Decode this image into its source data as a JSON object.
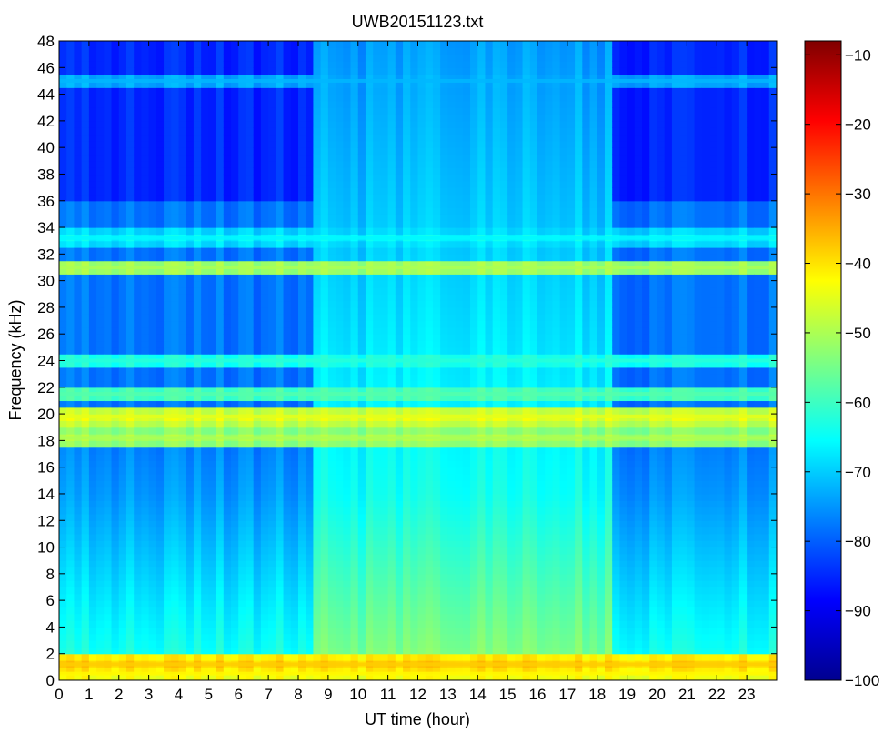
{
  "chart_data": {
    "type": "heatmap",
    "title": "UWB20151123.txt",
    "xlabel": "UT time (hour)",
    "ylabel": "Frequency (kHz)",
    "xlim": [
      0,
      24
    ],
    "ylim": [
      0,
      48
    ],
    "xticks": [
      "0",
      "1",
      "2",
      "3",
      "4",
      "5",
      "6",
      "7",
      "8",
      "9",
      "10",
      "11",
      "12",
      "13",
      "14",
      "15",
      "16",
      "17",
      "18",
      "19",
      "20",
      "21",
      "22",
      "23"
    ],
    "yticks": [
      "0",
      "2",
      "4",
      "6",
      "8",
      "10",
      "12",
      "14",
      "16",
      "18",
      "20",
      "22",
      "24",
      "26",
      "28",
      "30",
      "32",
      "34",
      "36",
      "38",
      "40",
      "42",
      "44",
      "46",
      "48"
    ],
    "colorbar": {
      "range": [
        -100,
        -8
      ],
      "ticks": [
        "−10",
        "−20",
        "−30",
        "−40",
        "−50",
        "−60",
        "−70",
        "−80",
        "−90",
        "−100"
      ],
      "tick_values": [
        -10,
        -20,
        -30,
        -40,
        -50,
        -60,
        -70,
        -80,
        -90,
        -100
      ],
      "colormap": "jet"
    },
    "bands_khz": [
      {
        "freq": 0.5,
        "level": -42
      },
      {
        "freq": 1.2,
        "level": -38
      },
      {
        "freq": 18.2,
        "level": -50
      },
      {
        "freq": 19.8,
        "level": -45
      },
      {
        "freq": 21.5,
        "level": -58
      },
      {
        "freq": 24.0,
        "level": -62
      },
      {
        "freq": 31.0,
        "level": -50
      },
      {
        "freq": 33.2,
        "level": -66
      },
      {
        "freq": 45.0,
        "level": -72
      }
    ]
  }
}
